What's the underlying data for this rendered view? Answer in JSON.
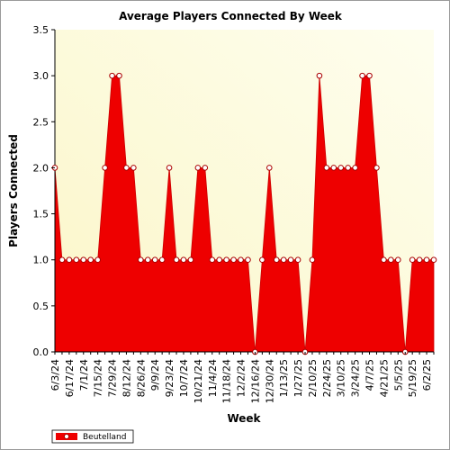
{
  "chart_data": {
    "type": "area",
    "title": "Average Players Connected By Week",
    "xlabel": "Week",
    "ylabel": "Players Connected",
    "ylim": [
      0,
      3.5
    ],
    "yticks": [
      "0.0",
      "0.5",
      "1.0",
      "1.5",
      "2.0",
      "2.5",
      "3.0",
      "3.5"
    ],
    "x_tick_labels": [
      "6/3/24",
      "6/17/24",
      "7/1/24",
      "7/15/24",
      "7/29/24",
      "8/12/24",
      "8/26/24",
      "9/9/24",
      "9/23/24",
      "10/7/24",
      "10/21/24",
      "11/4/24",
      "11/18/24",
      "12/2/24",
      "12/16/24",
      "12/30/24",
      "1/13/25",
      "1/27/25",
      "2/10/25",
      "2/24/25",
      "3/10/25",
      "3/24/25",
      "4/7/25",
      "4/21/25",
      "5/5/25",
      "5/19/25",
      "6/2/25"
    ],
    "series": [
      {
        "name": "Beutelland",
        "color": "#ee0000",
        "values": [
          2,
          1,
          1,
          1,
          1,
          1,
          1,
          2,
          3,
          3,
          2,
          2,
          1,
          1,
          1,
          1,
          2,
          1,
          1,
          1,
          2,
          2,
          1,
          1,
          1,
          1,
          1,
          1,
          0,
          1,
          2,
          1,
          1,
          1,
          1,
          0,
          1,
          3,
          2,
          2,
          2,
          2,
          2,
          3,
          3,
          2,
          1,
          1,
          1,
          0,
          1,
          1,
          1,
          1
        ]
      }
    ],
    "legend": "bottom-left",
    "grid": false,
    "background": "#fdfde0"
  }
}
